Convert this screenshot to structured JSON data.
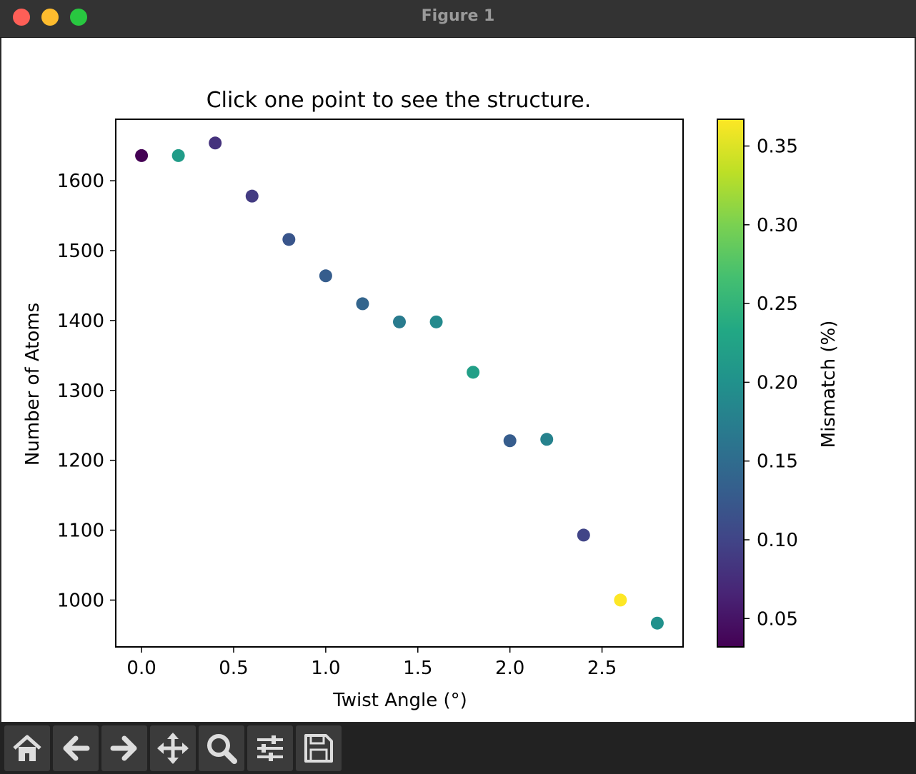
{
  "window": {
    "title": "Figure 1"
  },
  "toolbar": {
    "buttons": [
      {
        "name": "home",
        "icon": "home-icon"
      },
      {
        "name": "back",
        "icon": "arrow-left-icon"
      },
      {
        "name": "forward",
        "icon": "arrow-right-icon"
      },
      {
        "name": "pan",
        "icon": "move-icon"
      },
      {
        "name": "zoom",
        "icon": "magnifier-icon"
      },
      {
        "name": "configure-subplots",
        "icon": "sliders-icon"
      },
      {
        "name": "save",
        "icon": "floppy-disk-icon"
      }
    ]
  },
  "chart_data": {
    "type": "scatter",
    "title": "Click one point to see the structure.",
    "xlabel": "Twist Angle (°)",
    "ylabel": "Number of Atoms",
    "xlim": [
      -0.14,
      2.94
    ],
    "ylim": [
      933,
      1688
    ],
    "xticks": [
      "0.0",
      "0.5",
      "1.0",
      "1.5",
      "2.0",
      "2.5"
    ],
    "yticks": [
      "1000",
      "1100",
      "1200",
      "1300",
      "1400",
      "1500",
      "1600"
    ],
    "grid": false,
    "colormap": "viridis",
    "colorbar": {
      "label": "Mismatch (%)",
      "range": [
        0.032,
        0.367
      ],
      "ticks": [
        "0.05",
        "0.10",
        "0.15",
        "0.20",
        "0.25",
        "0.30",
        "0.35"
      ]
    },
    "points": [
      {
        "x": 0.0,
        "y": 1636,
        "c": 0.032
      },
      {
        "x": 0.2,
        "y": 1636,
        "c": 0.215
      },
      {
        "x": 0.4,
        "y": 1654,
        "c": 0.08
      },
      {
        "x": 0.6,
        "y": 1578,
        "c": 0.09
      },
      {
        "x": 0.8,
        "y": 1516,
        "c": 0.12
      },
      {
        "x": 1.0,
        "y": 1464,
        "c": 0.13
      },
      {
        "x": 1.2,
        "y": 1424,
        "c": 0.14
      },
      {
        "x": 1.4,
        "y": 1398,
        "c": 0.17
      },
      {
        "x": 1.6,
        "y": 1398,
        "c": 0.19
      },
      {
        "x": 1.8,
        "y": 1326,
        "c": 0.22
      },
      {
        "x": 2.0,
        "y": 1228,
        "c": 0.13
      },
      {
        "x": 2.2,
        "y": 1230,
        "c": 0.18
      },
      {
        "x": 2.4,
        "y": 1093,
        "c": 0.1
      },
      {
        "x": 2.6,
        "y": 1000,
        "c": 0.367
      },
      {
        "x": 2.8,
        "y": 967,
        "c": 0.2
      }
    ]
  }
}
